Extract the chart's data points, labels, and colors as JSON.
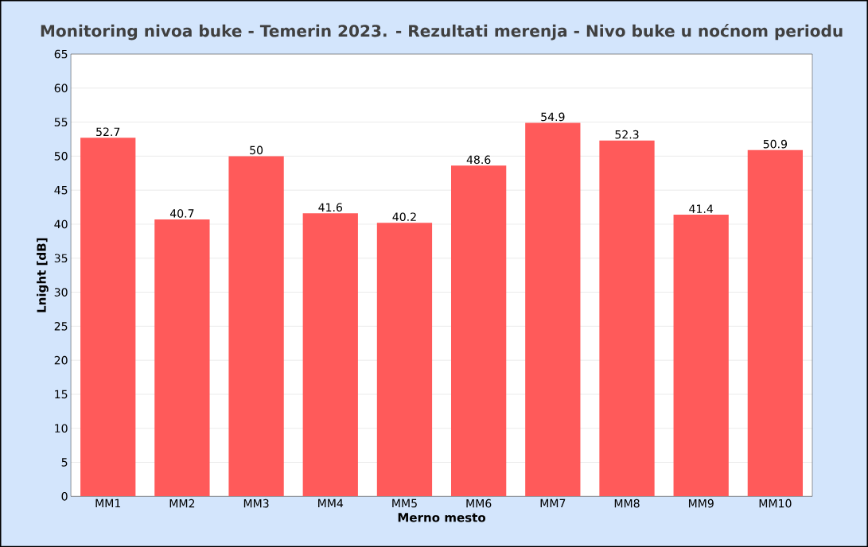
{
  "chart_data": {
    "type": "bar",
    "title": "Monitoring nivoa buke - Temerin 2023. - Rezultati merenja - Nivo buke u noćnom periodu",
    "xlabel": "Merno mesto",
    "ylabel": "Lnight [dB]",
    "categories": [
      "MM1",
      "MM2",
      "MM3",
      "MM4",
      "MM5",
      "MM6",
      "MM7",
      "MM8",
      "MM9",
      "MM10"
    ],
    "values": [
      52.7,
      40.7,
      50,
      41.6,
      40.2,
      48.6,
      54.9,
      52.3,
      41.4,
      50.9
    ],
    "color": "#ff5a5a",
    "data_labels": true,
    "grid": "y",
    "ylim": [
      0,
      65
    ],
    "yticks": [
      0,
      5,
      10,
      15,
      20,
      25,
      30,
      35,
      40,
      45,
      50,
      55,
      60,
      65
    ]
  }
}
